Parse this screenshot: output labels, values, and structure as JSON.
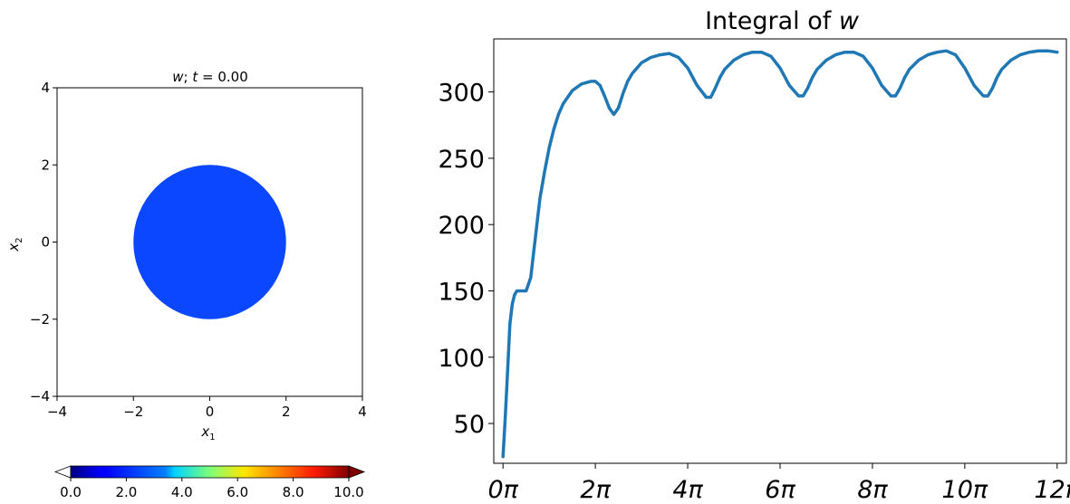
{
  "chart_data": [
    {
      "type": "heatmap",
      "title": "w; t = 0.00",
      "title_parts": {
        "var": "w",
        "rest": "; ",
        "tvar": "t",
        "eq": " = 0.00"
      },
      "xlabel": {
        "base": "x",
        "sub": "1"
      },
      "ylabel": {
        "base": "x",
        "sub": "2"
      },
      "xlim": [
        -4,
        4
      ],
      "ylim": [
        -4,
        4
      ],
      "xticks": [
        -4,
        -2,
        0,
        2,
        4
      ],
      "yticks": [
        -4,
        -2,
        0,
        2,
        4
      ],
      "xtick_labels": [
        "−4",
        "−2",
        "0",
        "2",
        "4"
      ],
      "ytick_labels": [
        "−4",
        "−2",
        "0",
        "2",
        "4"
      ],
      "shape": {
        "kind": "disk",
        "center": [
          0,
          0
        ],
        "radius": 2,
        "value": 2.5,
        "color": "#0a47ff"
      },
      "background_value": "none",
      "colorbar": {
        "colormap": "jet",
        "orientation": "horizontal",
        "min": 0,
        "max": 10,
        "extend": "both",
        "ticks": [
          0,
          2,
          4,
          6,
          8,
          10
        ],
        "tick_labels": [
          "0.0",
          "2.0",
          "4.0",
          "6.0",
          "8.0",
          "10.0"
        ]
      }
    },
    {
      "type": "line",
      "title": "Integral of w",
      "title_parts": {
        "prefix": "Integral of ",
        "var": "w"
      },
      "xlabel": "",
      "ylabel": "",
      "xlim_pi": [
        -0.2,
        12.2
      ],
      "ylim": [
        20,
        340
      ],
      "xticks_pi": [
        0,
        2,
        4,
        6,
        8,
        10,
        12
      ],
      "xtick_labels": [
        "0π",
        "2π",
        "4π",
        "6π",
        "8π",
        "10π",
        "12π"
      ],
      "yticks": [
        50,
        100,
        150,
        200,
        250,
        300
      ],
      "ytick_labels": [
        "50",
        "100",
        "150",
        "200",
        "250",
        "300"
      ],
      "grid": false,
      "series": [
        {
          "color": "#1f77b4",
          "x_pi": [
            0.0,
            0.05,
            0.1,
            0.15,
            0.2,
            0.25,
            0.3,
            0.4,
            0.5,
            0.6,
            0.65,
            0.7,
            0.75,
            0.8,
            0.9,
            1.0,
            1.1,
            1.2,
            1.3,
            1.5,
            1.7,
            1.9,
            2.0,
            2.1,
            2.2,
            2.3,
            2.4,
            2.5,
            2.6,
            2.7,
            2.8,
            3.0,
            3.2,
            3.4,
            3.6,
            3.8,
            4.0,
            4.2,
            4.4,
            4.5,
            4.6,
            4.7,
            4.8,
            5.0,
            5.2,
            5.4,
            5.6,
            5.8,
            6.0,
            6.2,
            6.4,
            6.5,
            6.6,
            6.7,
            6.8,
            7.0,
            7.2,
            7.4,
            7.6,
            7.8,
            8.0,
            8.2,
            8.4,
            8.5,
            8.6,
            8.7,
            8.8,
            9.0,
            9.2,
            9.4,
            9.6,
            9.8,
            10.0,
            10.2,
            10.4,
            10.5,
            10.6,
            10.7,
            10.8,
            11.0,
            11.2,
            11.4,
            11.6,
            11.8,
            12.0
          ],
          "y": [
            25,
            55,
            90,
            125,
            140,
            147,
            150,
            150,
            150,
            160,
            175,
            190,
            205,
            220,
            240,
            258,
            272,
            283,
            291,
            301,
            306,
            308,
            308,
            305,
            297,
            288,
            283,
            288,
            299,
            308,
            314,
            322,
            326,
            328,
            329,
            326,
            318,
            305,
            296,
            296,
            303,
            311,
            317,
            324,
            328,
            330,
            330,
            327,
            318,
            305,
            297,
            297,
            303,
            311,
            317,
            324,
            328,
            330,
            330,
            327,
            318,
            305,
            297,
            297,
            303,
            311,
            317,
            324,
            328,
            330,
            331,
            328,
            318,
            305,
            297,
            297,
            303,
            311,
            317,
            324,
            328,
            330,
            331,
            331,
            330
          ]
        }
      ]
    }
  ]
}
